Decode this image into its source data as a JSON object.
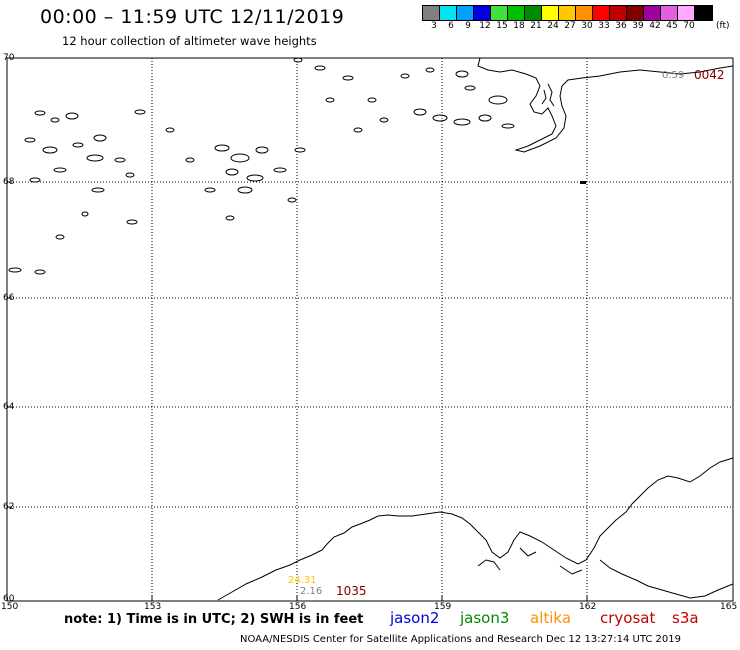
{
  "header": {
    "title": "00:00 – 11:59 UTC 12/11/2019",
    "subtitle": "12 hour collection of altimeter wave heights"
  },
  "legend": {
    "unit": "(ft)",
    "items": [
      {
        "label": "3",
        "color": "#808080"
      },
      {
        "label": "6",
        "color": "#00e5ee"
      },
      {
        "label": "9",
        "color": "#00a0ff"
      },
      {
        "label": "12",
        "color": "#0000e0"
      },
      {
        "label": "15",
        "color": "#40e040"
      },
      {
        "label": "18",
        "color": "#00c000"
      },
      {
        "label": "21",
        "color": "#008a00"
      },
      {
        "label": "24",
        "color": "#ffff00"
      },
      {
        "label": "27",
        "color": "#ffc800"
      },
      {
        "label": "30",
        "color": "#ff9000"
      },
      {
        "label": "33",
        "color": "#ff0000"
      },
      {
        "label": "36",
        "color": "#c00000"
      },
      {
        "label": "39",
        "color": "#800000"
      },
      {
        "label": "42",
        "color": "#a000a0"
      },
      {
        "label": "45",
        "color": "#e060e0"
      },
      {
        "label": "70",
        "color": "#ffa8ff"
      },
      {
        "label": "",
        "color": "#000000"
      }
    ]
  },
  "map": {
    "lat_labels": [
      "70",
      "68",
      "66",
      "64",
      "62",
      "60"
    ],
    "lon_labels": [
      "150",
      "153",
      "156",
      "159",
      "162",
      "165"
    ],
    "observations": [
      {
        "value": "0.59",
        "time": "0042",
        "value_color": "#808080",
        "time_color": "#800000"
      },
      {
        "value": "24.31",
        "color": "#ffc800"
      },
      {
        "value": "2.16",
        "color": "#808080"
      },
      {
        "time": "1035",
        "time_color": "#800000"
      }
    ]
  },
  "notes": {
    "text": "note: 1) Time is in UTC; 2) SWH is in feet"
  },
  "satellites": [
    {
      "name": "jason2",
      "color": "#0000e0"
    },
    {
      "name": "jason3",
      "color": "#008a00"
    },
    {
      "name": "altika",
      "color": "#ff9000"
    },
    {
      "name": "cryosat",
      "color": "#c00000"
    },
    {
      "name": "s3a",
      "color": "#c00000"
    }
  ],
  "footer": {
    "text": "NOAA/NESDIS Center for Satellite Applications and Research   Dec 12 13:27:14 UTC 2019"
  }
}
